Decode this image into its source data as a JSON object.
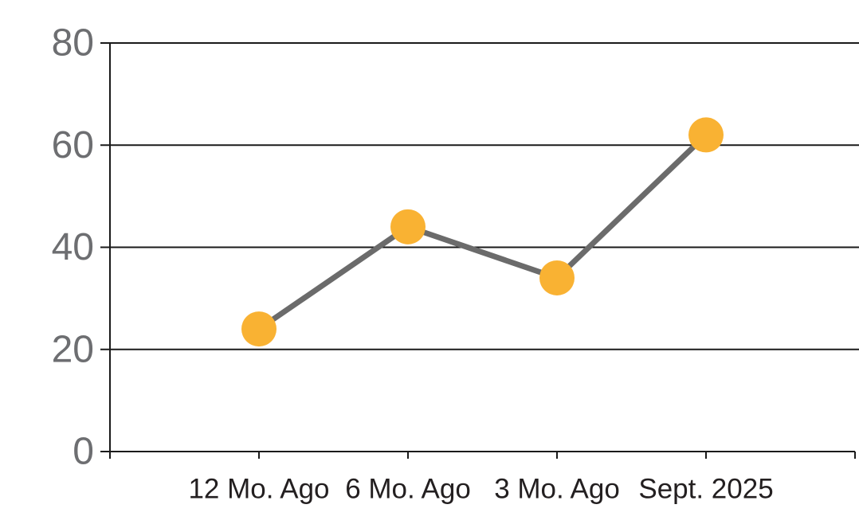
{
  "chart_data": {
    "type": "line",
    "title": "",
    "xlabel": "",
    "ylabel": "",
    "categories": [
      "12 Mo. Ago",
      "6 Mo. Ago",
      "3 Mo. Ago",
      "Sept. 2025"
    ],
    "series": [
      {
        "name": "series-1",
        "values": [
          24,
          44,
          34,
          62
        ]
      }
    ],
    "ylim": [
      0,
      80
    ],
    "yticks": [
      0,
      20,
      40,
      60,
      80
    ],
    "grid": true,
    "legend": false,
    "marker": "circle",
    "colors": {
      "marker_fill": "#F9B233",
      "line_stroke": "#6B6B6B",
      "axis_and_grid": "#1A1A1A",
      "ytick_label": "#6D6E71",
      "xtick_label": "#231F20",
      "background": "#FFFFFF"
    }
  }
}
